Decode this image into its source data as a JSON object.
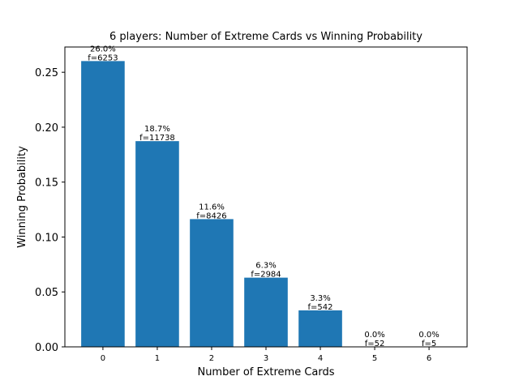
{
  "chart_data": {
    "type": "bar",
    "title": "6 players: Number of Extreme Cards vs Winning Probability",
    "xlabel": "Number of Extreme Cards",
    "ylabel": "Winning Probability",
    "categories": [
      "0",
      "1",
      "2",
      "3",
      "4",
      "5",
      "6"
    ],
    "values": [
      0.2602,
      0.1873,
      0.1163,
      0.063,
      0.0332,
      0.0,
      0.0
    ],
    "bar_labels": [
      [
        "26.0%",
        "f=6253"
      ],
      [
        "18.7%",
        "f=11738"
      ],
      [
        "11.6%",
        "f=8426"
      ],
      [
        "6.3%",
        "f=2984"
      ],
      [
        "3.3%",
        "f=542"
      ],
      [
        "0.0%",
        "f=52"
      ],
      [
        "0.0%",
        "f=5"
      ]
    ],
    "yticks": [
      "0.00",
      "0.05",
      "0.10",
      "0.15",
      "0.20",
      "0.25"
    ],
    "ylim": [
      0,
      0.273
    ],
    "grid": false,
    "bar_color": "#1f77b4"
  }
}
